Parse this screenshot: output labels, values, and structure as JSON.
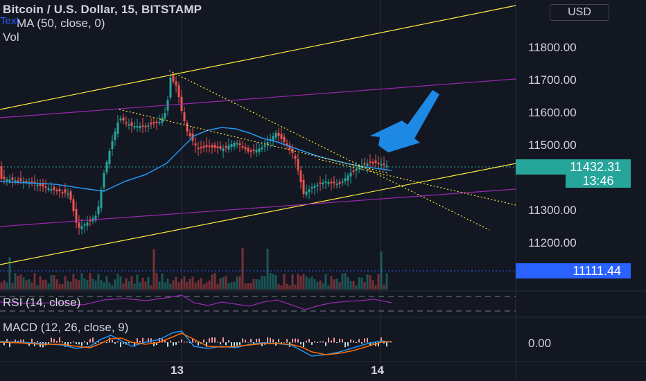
{
  "header": {
    "title": "Bitcoin / U.S. Dollar, 15, BITSTAMP",
    "ma_label": "MA (50, close, 0)",
    "vol_label": "Vol",
    "text_tag": "Text"
  },
  "currency_button": "USD",
  "price_axis": {
    "labels": [
      "11800.00",
      "11700.00",
      "11600.00",
      "11500.00",
      "11300.00",
      "11200.00"
    ],
    "current_price": "11432.31",
    "countdown": "13:46",
    "alert_price": "11111.44",
    "macd_zero": "0.00"
  },
  "indicators": {
    "rsi_label": "RSI (14, close)",
    "macd_label": "MACD (12, 26, close, 9)"
  },
  "time_axis": {
    "labels": [
      "13",
      "14"
    ]
  },
  "colors": {
    "background": "#131722",
    "up": "#26a69a",
    "down": "#ef5350",
    "trendline": "#ffeb3b",
    "channel": "#9c27b0",
    "ma": "#2196f3",
    "arrow": "#1e88e5",
    "price_badge": "#26a69a",
    "alert_badge": "#2962ff"
  }
}
